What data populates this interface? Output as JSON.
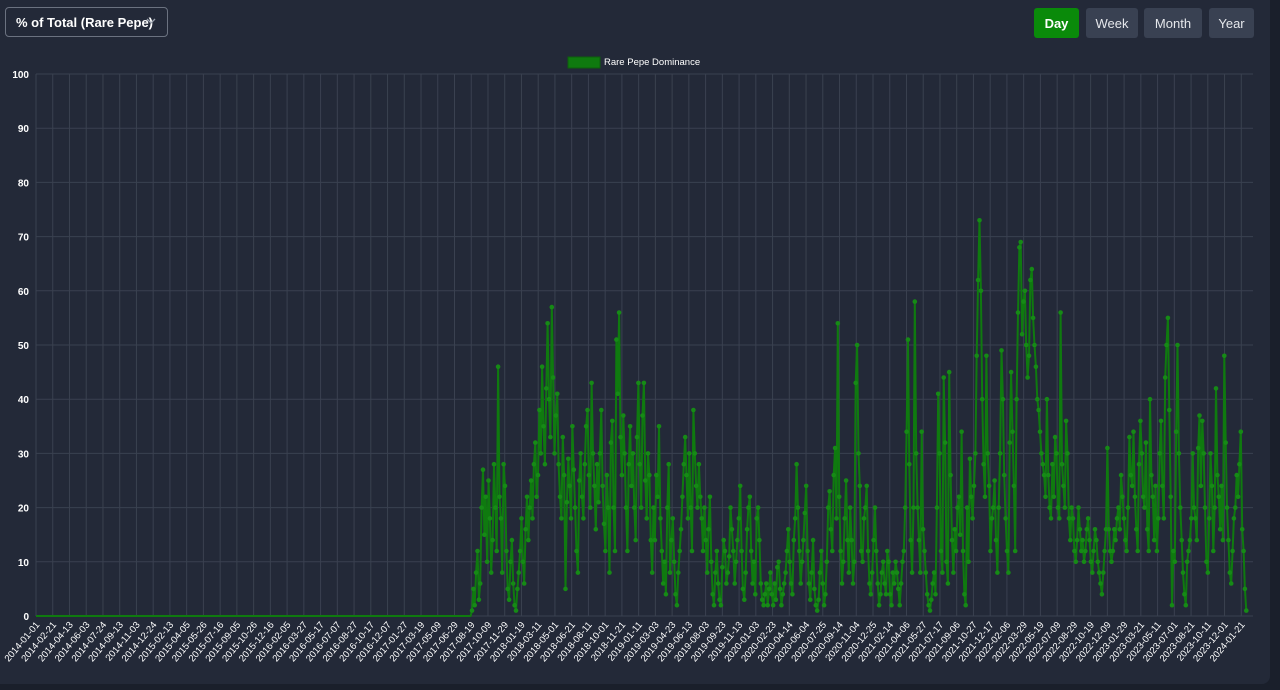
{
  "controls": {
    "metric_select": {
      "value": "% of Total (Rare Pepe)"
    },
    "periods": [
      {
        "label": "Day",
        "active": true
      },
      {
        "label": "Week",
        "active": false
      },
      {
        "label": "Month",
        "active": false
      },
      {
        "label": "Year",
        "active": false
      }
    ]
  },
  "colors": {
    "series": "#0f7a0f",
    "grid": "#3a4150",
    "text": "#ffffff",
    "active_button": "#0a8a0a"
  },
  "chart_data": {
    "type": "line",
    "title": "",
    "xlabel": "",
    "ylabel": "",
    "ylim": [
      0,
      100
    ],
    "yticks": [
      0,
      10,
      20,
      30,
      40,
      50,
      60,
      70,
      80,
      90,
      100
    ],
    "grid": true,
    "legend_position": "top-center",
    "xticks": [
      "2014-01-01",
      "2014-02-21",
      "2014-04-13",
      "2014-06-03",
      "2014-07-24",
      "2014-09-13",
      "2014-11-03",
      "2014-12-24",
      "2015-02-13",
      "2015-04-05",
      "2015-05-26",
      "2015-07-16",
      "2015-09-05",
      "2015-10-26",
      "2015-12-16",
      "2016-02-05",
      "2016-03-27",
      "2016-05-17",
      "2016-07-07",
      "2016-08-27",
      "2016-10-17",
      "2016-12-07",
      "2017-01-27",
      "2017-03-19",
      "2017-05-09",
      "2017-06-29",
      "2017-08-19",
      "2017-10-09",
      "2017-11-29",
      "2018-01-19",
      "2018-03-11",
      "2018-05-01",
      "2018-06-21",
      "2018-08-11",
      "2018-10-01",
      "2018-11-21",
      "2019-01-11",
      "2019-03-03",
      "2019-04-23",
      "2019-06-13",
      "2019-08-03",
      "2019-09-23",
      "2019-11-13",
      "2020-01-03",
      "2020-02-23",
      "2020-04-14",
      "2020-06-04",
      "2020-07-25",
      "2020-09-14",
      "2020-11-04",
      "2020-12-25",
      "2021-02-14",
      "2021-04-06",
      "2021-05-27",
      "2021-07-17",
      "2021-09-06",
      "2021-10-27",
      "2021-12-17",
      "2022-02-06",
      "2022-03-29",
      "2022-05-19",
      "2022-07-09",
      "2022-08-29",
      "2022-10-19",
      "2022-12-09",
      "2023-01-29",
      "2023-03-21",
      "2023-05-11",
      "2023-07-01",
      "2023-08-21",
      "2023-10-11",
      "2023-12-01",
      "2024-01-21"
    ],
    "series": [
      {
        "name": "Rare Pepe Dominance",
        "x_start_index": 0,
        "x_end_index": 72.3,
        "values": [
          0,
          0,
          0,
          0,
          0,
          0,
          0,
          0,
          0,
          0,
          0,
          0,
          0,
          0,
          0,
          0,
          0,
          0,
          0,
          0,
          0,
          0,
          0,
          0,
          0,
          0,
          0,
          0,
          0,
          0,
          0,
          0,
          0,
          0,
          0,
          0,
          0,
          0,
          0,
          0,
          0,
          0,
          0,
          0,
          0,
          0,
          0,
          0,
          0,
          0,
          0,
          0,
          0,
          0,
          0,
          0,
          0,
          0,
          0,
          0,
          0,
          0,
          0,
          0,
          0,
          0,
          0,
          0,
          0,
          0,
          0,
          0,
          0,
          0,
          0,
          0,
          0,
          0,
          0,
          0,
          0,
          0,
          0,
          0,
          0,
          0,
          0,
          0,
          0,
          0,
          0,
          0,
          0,
          0,
          0,
          0,
          0,
          0,
          0,
          0,
          0,
          0,
          0,
          0,
          0,
          0,
          0,
          0,
          0,
          0,
          0,
          0,
          0,
          0,
          0,
          0,
          0,
          0,
          0,
          0,
          0,
          0,
          0,
          0,
          0,
          0,
          0,
          0,
          0,
          0,
          0,
          0,
          0,
          0,
          0,
          0,
          0,
          0,
          0,
          0,
          0,
          0,
          0,
          0,
          0,
          0,
          0,
          0,
          0,
          0,
          0,
          0,
          0,
          0,
          0,
          0,
          0,
          0,
          0,
          0,
          0,
          0,
          0,
          0,
          0,
          0,
          0,
          0,
          0,
          0,
          0,
          0,
          0,
          0,
          0,
          0,
          0,
          0,
          0,
          0,
          0,
          0,
          0,
          0,
          0,
          0,
          0,
          0,
          0,
          0,
          0,
          0,
          0,
          0,
          0,
          0,
          0,
          0,
          0,
          0,
          0,
          0,
          0,
          0,
          0,
          0,
          0,
          0,
          0,
          0,
          0,
          0,
          0,
          0,
          0,
          0,
          0,
          0,
          0,
          0,
          0,
          0,
          0,
          0,
          0,
          0,
          0,
          0,
          0,
          0,
          0,
          0,
          0,
          0,
          0,
          0,
          0,
          0,
          0,
          0,
          0,
          0,
          0,
          0,
          0,
          0,
          0,
          0,
          0,
          0,
          0,
          0,
          0,
          0,
          0,
          0,
          0,
          0,
          0,
          0,
          0,
          0,
          0,
          0,
          0,
          0,
          0,
          0,
          0,
          0,
          0,
          0,
          0,
          0,
          0,
          0,
          0,
          0,
          0,
          0,
          0,
          0,
          0,
          0,
          0,
          0,
          0,
          0,
          0,
          0,
          0,
          0,
          0,
          0,
          0,
          0,
          0,
          0,
          0,
          0,
          0,
          0,
          0,
          0,
          0,
          0,
          0,
          0,
          0,
          0,
          0,
          0,
          0,
          0,
          0,
          0,
          0,
          1,
          5,
          2,
          8,
          12,
          3,
          6,
          20,
          27,
          15,
          22,
          10,
          25,
          18,
          8,
          14,
          28,
          20,
          12,
          46,
          22,
          18,
          8,
          28,
          24,
          12,
          5,
          3,
          10,
          14,
          6,
          2,
          1,
          5,
          8,
          12,
          18,
          10,
          6,
          16,
          22,
          14,
          20,
          25,
          18,
          28,
          32,
          22,
          26,
          38,
          30,
          46,
          35,
          28,
          42,
          54,
          40,
          33,
          57,
          44,
          30,
          37,
          41,
          28,
          22,
          18,
          33,
          26,
          5,
          21,
          29,
          24,
          18,
          35,
          27,
          20,
          12,
          8,
          25,
          30,
          22,
          18,
          28,
          35,
          38,
          26,
          20,
          43,
          30,
          24,
          16,
          28,
          21,
          30,
          38,
          24,
          17,
          12,
          26,
          20,
          8,
          32,
          36,
          20,
          12,
          51,
          41,
          56,
          33,
          26,
          37,
          30,
          20,
          12,
          28,
          35,
          24,
          30,
          20,
          14,
          33,
          43,
          28,
          20,
          37,
          43,
          25,
          18,
          30,
          26,
          14,
          8,
          20,
          14,
          26,
          22,
          35,
          18,
          12,
          6,
          10,
          4,
          20,
          28,
          8,
          14,
          18,
          10,
          4,
          2,
          8,
          12,
          16,
          22,
          28,
          33,
          26,
          18,
          30,
          20,
          12,
          38,
          30,
          24,
          20,
          28,
          22,
          18,
          12,
          20,
          14,
          8,
          16,
          22,
          10,
          4,
          2,
          8,
          12,
          6,
          3,
          2,
          9,
          14,
          12,
          6,
          8,
          11,
          20,
          16,
          12,
          6,
          10,
          14,
          18,
          24,
          12,
          5,
          3,
          8,
          16,
          20,
          22,
          12,
          6,
          10,
          4,
          18,
          20,
          14,
          6,
          3,
          2,
          4,
          6,
          2,
          5,
          8,
          4,
          2,
          6,
          3,
          9,
          10,
          5,
          2,
          4,
          6,
          8,
          12,
          16,
          10,
          6,
          4,
          14,
          18,
          28,
          20,
          12,
          6,
          10,
          14,
          19,
          24,
          12,
          6,
          3,
          8,
          14,
          5,
          2,
          1,
          3,
          8,
          12,
          6,
          2,
          4,
          10,
          20,
          23,
          16,
          12,
          26,
          31,
          18,
          54,
          22,
          12,
          6,
          10,
          18,
          25,
          14,
          8,
          20,
          14,
          6,
          10,
          43,
          50,
          30,
          24,
          12,
          10,
          18,
          20,
          24,
          12,
          6,
          4,
          8,
          14,
          20,
          12,
          6,
          2,
          4,
          8,
          10,
          6,
          4,
          12,
          10,
          4,
          2,
          8,
          6,
          10,
          8,
          5,
          2,
          6,
          10,
          12,
          20,
          34,
          51,
          28,
          14,
          8,
          20,
          58,
          30,
          20,
          14,
          8,
          34,
          16,
          12,
          8,
          4,
          2,
          1,
          3,
          6,
          8,
          4,
          20,
          41,
          30,
          12,
          8,
          44,
          32,
          10,
          6,
          45,
          26,
          14,
          8,
          16,
          12,
          20,
          22,
          15,
          34,
          12,
          4,
          2,
          20,
          10,
          29,
          22,
          18,
          24,
          30,
          48,
          62,
          73,
          60,
          40,
          28,
          22,
          48,
          30,
          24,
          12,
          18,
          20,
          25,
          14,
          8,
          20,
          30,
          49,
          40,
          26,
          18,
          12,
          8,
          32,
          45,
          34,
          24,
          12,
          40,
          56,
          68,
          69,
          52,
          58,
          60,
          50,
          44,
          48,
          62,
          64,
          55,
          50,
          46,
          40,
          38,
          34,
          30,
          28,
          26,
          22,
          40,
          26,
          20,
          18,
          28,
          22,
          33,
          30,
          20,
          18,
          56,
          28,
          24,
          20,
          36,
          30,
          18,
          14,
          20,
          18,
          12,
          10,
          14,
          20,
          16,
          12,
          14,
          10,
          12,
          16,
          18,
          14,
          10,
          8,
          12,
          16,
          14,
          10,
          8,
          6,
          4,
          8,
          12,
          16,
          31,
          16,
          12,
          10,
          12,
          16,
          14,
          18,
          20,
          16,
          26,
          22,
          18,
          14,
          12,
          20,
          33,
          26,
          24,
          34,
          22,
          16,
          12,
          28,
          36,
          30,
          22,
          20,
          32,
          16,
          12,
          40,
          26,
          22,
          14,
          24,
          12,
          18,
          30,
          36,
          24,
          18,
          44,
          50,
          55,
          38,
          22,
          2,
          12,
          10,
          34,
          50,
          30,
          20,
          14,
          8,
          4,
          2,
          10,
          12,
          14,
          18,
          30,
          20,
          18,
          14,
          31,
          37,
          24,
          36,
          30,
          20,
          10,
          8,
          18,
          30,
          24,
          12,
          20,
          42,
          26,
          22,
          16,
          24,
          14,
          48,
          32,
          20,
          14,
          8,
          6,
          12,
          18,
          20,
          26,
          22,
          28,
          34,
          16,
          12,
          5,
          1
        ]
      }
    ]
  }
}
